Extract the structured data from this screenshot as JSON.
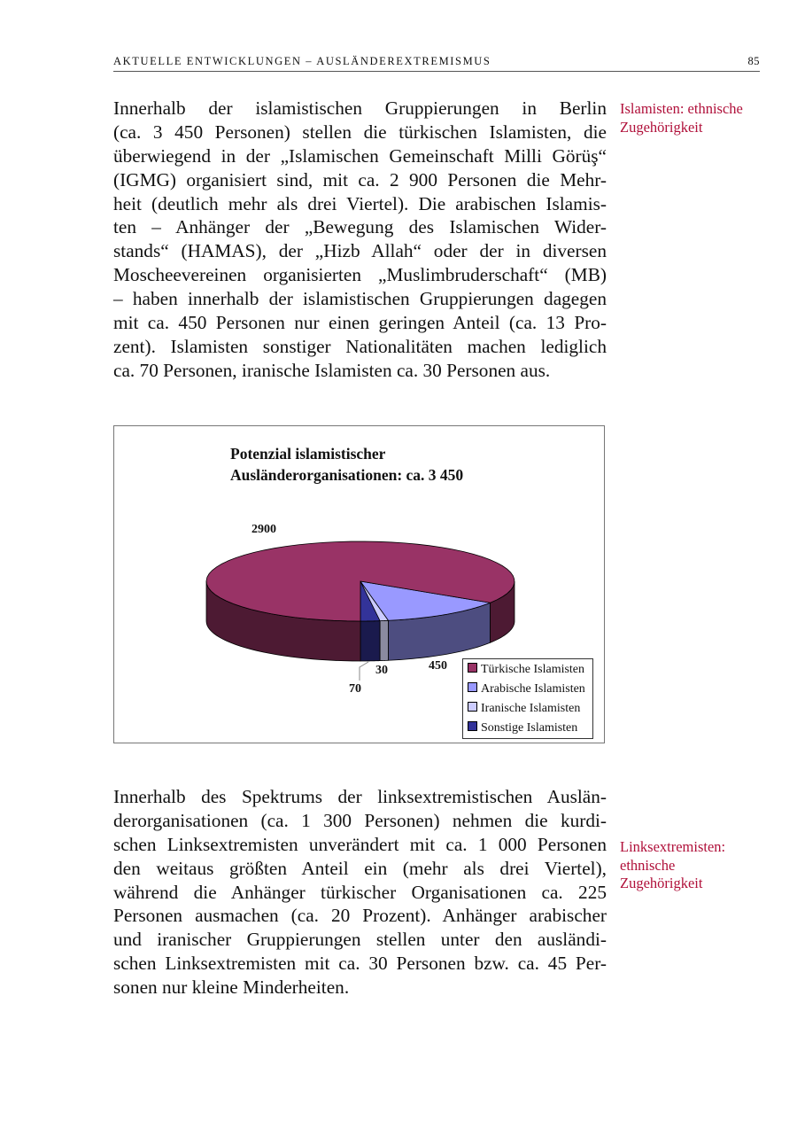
{
  "header": {
    "running_title": "AKTUELLE ENTWICKLUNGEN – AUSLÄNDEREXTREMISMUS",
    "page_number": "85"
  },
  "paragraph1": {
    "lines": [
      "Innerhalb der islamistischen Gruppierungen in Berlin",
      "(ca. 3 450 Personen) stellen die türkischen Islamisten, die",
      "überwiegend in der „Islamischen Gemeinschaft Milli Görüş“",
      "(IGMG) organisiert sind, mit ca. 2 900 Personen die Mehr-",
      "heit (deutlich mehr als drei Viertel). Die arabischen Islamis-",
      "ten – Anhänger der „Bewegung des Islamischen Wider-",
      "stands“  (HAMAS), der „Hizb Allah“ oder der in diversen",
      "Moscheevereinen organisierten „Muslimbruderschaft“ (MB)",
      "– haben innerhalb der islamistischen Gruppierungen dagegen",
      "mit ca. 450 Personen nur einen geringen Anteil (ca. 13 Pro-",
      "zent). Islamisten sonstiger Nationalitäten machen lediglich",
      "ca. 70 Personen, iranische Islamisten ca. 30 Personen aus."
    ]
  },
  "margin_note1": {
    "lines": [
      "Islamisten: ethnische",
      "Zugehörigkeit"
    ]
  },
  "paragraph2": {
    "lines": [
      "Innerhalb des Spektrums der linksextremistischen Auslän-",
      "derorganisationen (ca. 1 300 Personen) nehmen die kurdi-",
      "schen Linksextremisten unverändert mit ca. 1 000 Personen",
      "den weitaus größten Anteil ein (mehr als drei Viertel),",
      "während die Anhänger türkischer Organisationen ca. 225",
      "Personen ausmachen (ca. 20 Prozent). Anhänger arabischer",
      "und iranischer Gruppierungen stellen unter den ausländi-",
      "schen Linksextremisten mit ca. 30 Personen bzw. ca. 45 Per-",
      "sonen nur kleine Minderheiten."
    ]
  },
  "margin_note2": {
    "lines": [
      "Linksextremisten:",
      "ethnische",
      "Zugehörigkeit"
    ]
  },
  "accent_color": "#b0103a",
  "chart_data": {
    "type": "pie",
    "style": "3d",
    "title": "Potenzial islamistischer Ausländerorganisationen: ca. 3 450",
    "title_lines": [
      "Potenzial islamistischer",
      "Ausländerorganisationen: ca. 3 450"
    ],
    "legend_position": "bottom-right",
    "slices": [
      {
        "name": "Türkische Islamisten",
        "value": 2900,
        "label": "2900",
        "color": "#993366",
        "side_color": "#4d1a33"
      },
      {
        "name": "Arabische Islamisten",
        "value": 450,
        "label": "450",
        "color": "#9999ff",
        "side_color": "#4d4d80"
      },
      {
        "name": "Iranische Islamisten",
        "value": 30,
        "label": "30",
        "color": "#ccccff",
        "side_color": "#8a8aa0"
      },
      {
        "name": "Sonstige Islamisten",
        "value": 70,
        "label": "70",
        "color": "#333399",
        "side_color": "#1a1a4d"
      }
    ]
  }
}
